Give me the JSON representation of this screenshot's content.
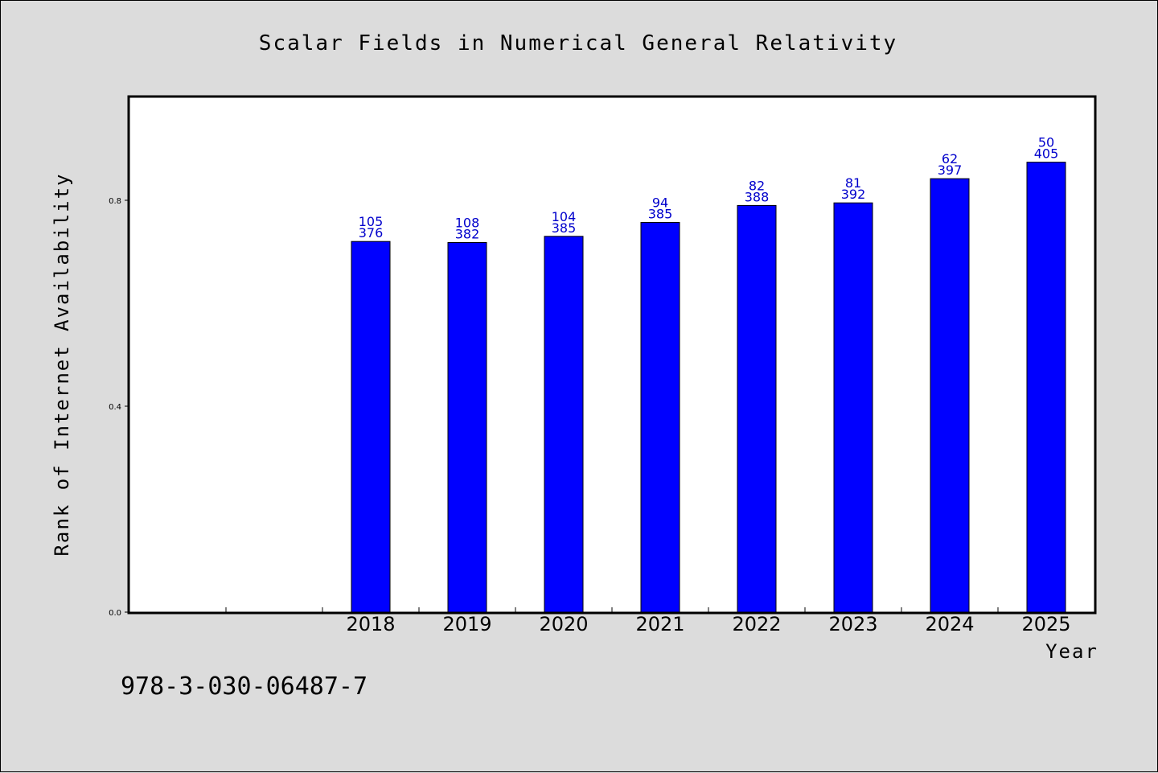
{
  "chart_data": {
    "type": "bar",
    "title": "Scalar Fields in Numerical General Relativity",
    "xlabel": "Year",
    "ylabel": "Rank of Internet Availability",
    "categories": [
      "",
      "",
      "2018",
      "2019",
      "2020",
      "2021",
      "2022",
      "2023",
      "2024",
      "2025"
    ],
    "values": [
      null,
      null,
      0.72,
      0.718,
      0.73,
      0.757,
      0.79,
      0.795,
      0.842,
      0.874
    ],
    "labels_top": [
      "",
      "",
      "105",
      "108",
      "104",
      "94",
      "82",
      "81",
      "62",
      "50"
    ],
    "labels_bottom": [
      "",
      "",
      "376",
      "382",
      "385",
      "385",
      "388",
      "392",
      "397",
      "405"
    ],
    "ylim": [
      0,
      1.0
    ],
    "yticks": [
      0.0,
      0.4,
      0.8
    ],
    "ytick_labels": [
      "0.0",
      "0.4",
      "0.8"
    ],
    "grid": false,
    "bar_color": "#0000ff",
    "label_color": "#0000cc",
    "background_color": "#dcdcdc",
    "plot_background": "#ffffff"
  },
  "footer": {
    "isbn": "978-3-030-06487-7"
  }
}
